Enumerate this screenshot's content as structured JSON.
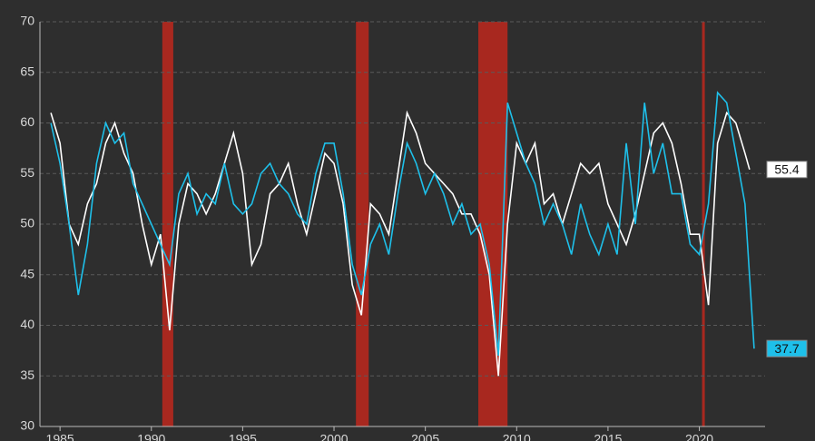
{
  "chart_data": {
    "type": "line",
    "xlim": [
      1983.9,
      2023.6
    ],
    "xticks": [
      1985,
      1990,
      1995,
      2000,
      2005,
      2010,
      2015,
      2020
    ],
    "ylim": [
      30,
      70
    ],
    "yticks": [
      30,
      35,
      40,
      45,
      50,
      55,
      60,
      65,
      70
    ],
    "grid": true,
    "shaded_ranges": [
      [
        1990.6,
        1991.2
      ],
      [
        2001.2,
        2001.9
      ],
      [
        2007.9,
        2009.5
      ],
      [
        2020.15,
        2020.3
      ]
    ],
    "shade_color": "#a8281f",
    "series": [
      {
        "color": "#ffffff",
        "x": [
          1984.5,
          1985,
          1985.5,
          1986,
          1986.5,
          1987,
          1987.5,
          1988,
          1988.5,
          1989,
          1989.5,
          1990,
          1990.5,
          1991,
          1991.5,
          1992,
          1992.5,
          1993,
          1993.5,
          1994,
          1994.5,
          1995,
          1995.5,
          1996,
          1996.5,
          1997,
          1997.5,
          1998,
          1998.5,
          1999,
          1999.5,
          2000,
          2000.5,
          2001,
          2001.5,
          2002,
          2002.5,
          2003,
          2003.5,
          2004,
          2004.5,
          2005,
          2005.5,
          2006,
          2006.5,
          2007,
          2007.5,
          2008,
          2008.5,
          2009,
          2009.5,
          2010,
          2010.5,
          2011,
          2011.5,
          2012,
          2012.5,
          2013,
          2013.5,
          2014,
          2014.5,
          2015,
          2015.5,
          2016,
          2016.5,
          2017,
          2017.5,
          2018,
          2018.5,
          2019,
          2019.5,
          2020,
          2020.5,
          2021,
          2021.5,
          2022,
          2022.5,
          2022.75
        ],
        "values": [
          61,
          58,
          50,
          48,
          52,
          54,
          58,
          60,
          57,
          55,
          50,
          46,
          49,
          39.5,
          50,
          54,
          53,
          51,
          53,
          56,
          59,
          55,
          46,
          48,
          53,
          54,
          56,
          52,
          49,
          53,
          57,
          56,
          52,
          44,
          41,
          52,
          51,
          49,
          55,
          61,
          59,
          56,
          55,
          54,
          53,
          51,
          51,
          49,
          45,
          35,
          50,
          58,
          56,
          58,
          52,
          53,
          50,
          53,
          56,
          55,
          56,
          52,
          50,
          48,
          51,
          55,
          59,
          60,
          58,
          54,
          49,
          49,
          42,
          58,
          61,
          60,
          57,
          55.4
        ]
      },
      {
        "color": "#1ec0ea",
        "x": [
          1984.5,
          1985,
          1985.5,
          1986,
          1986.5,
          1987,
          1987.5,
          1988,
          1988.5,
          1989,
          1989.5,
          1990,
          1990.5,
          1991,
          1991.5,
          1992,
          1992.5,
          1993,
          1993.5,
          1994,
          1994.5,
          1995,
          1995.5,
          1996,
          1996.5,
          1997,
          1997.5,
          1998,
          1998.5,
          1999,
          1999.5,
          2000,
          2000.5,
          2001,
          2001.5,
          2002,
          2002.5,
          2003,
          2003.5,
          2004,
          2004.5,
          2005,
          2005.5,
          2006,
          2006.5,
          2007,
          2007.5,
          2008,
          2008.5,
          2009,
          2009.5,
          2010,
          2010.5,
          2011,
          2011.5,
          2012,
          2012.5,
          2013,
          2013.5,
          2014,
          2014.5,
          2015,
          2015.5,
          2016,
          2016.5,
          2017,
          2017.5,
          2018,
          2018.5,
          2019,
          2019.5,
          2020,
          2020.5,
          2021,
          2021.5,
          2022,
          2022.5,
          2023
        ],
        "values": [
          60,
          56,
          50,
          43,
          48,
          56,
          60,
          58,
          59,
          54,
          52,
          50,
          48,
          46,
          53,
          55,
          51,
          53,
          52,
          56,
          52,
          51,
          52,
          55,
          56,
          54,
          53,
          51,
          50,
          55,
          58,
          58,
          53,
          46,
          43,
          48,
          50,
          47,
          53,
          58,
          56,
          53,
          55,
          53,
          50,
          52,
          49,
          50,
          46,
          37,
          62,
          59,
          56,
          54,
          50,
          52,
          50,
          47,
          52,
          49,
          47,
          50,
          47,
          58,
          50,
          62,
          55,
          58,
          53,
          53,
          48,
          47,
          52,
          63,
          62,
          57,
          52,
          37.7
        ]
      }
    ]
  }
}
